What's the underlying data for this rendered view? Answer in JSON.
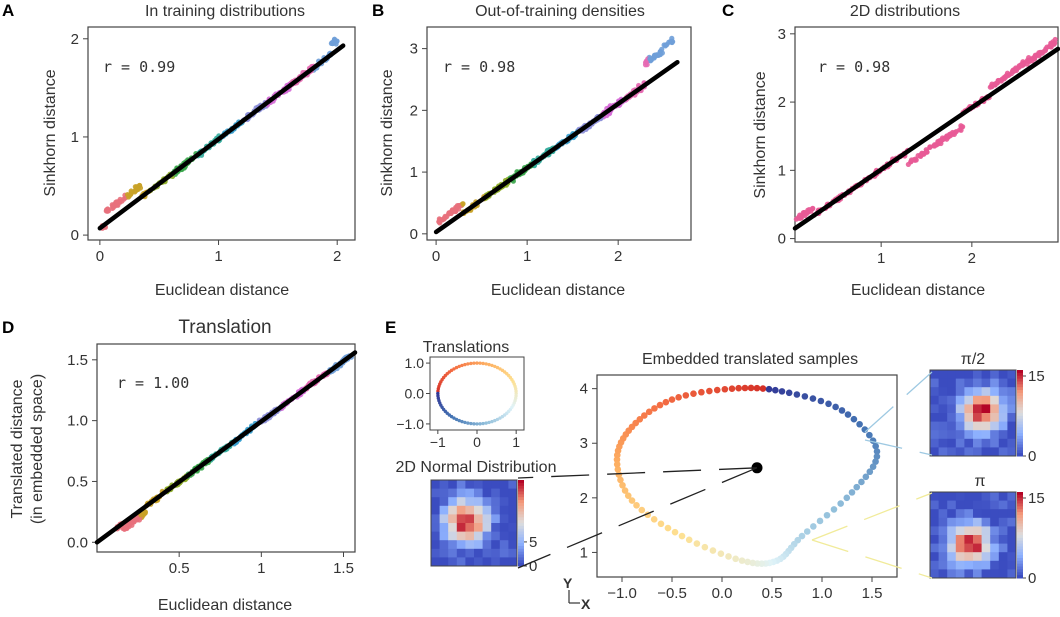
{
  "panels": {
    "A": {
      "letter": "A",
      "title": "In training distributions",
      "r_label": "r = 0.99",
      "xlabel": "Euclidean distance",
      "ylabel": "Sinkhorn distance"
    },
    "B": {
      "letter": "B",
      "title": "Out-of-training densities",
      "r_label": "r = 0.98",
      "xlabel": "Euclidean distance",
      "ylabel": "Sinkhorn distance"
    },
    "C": {
      "letter": "C",
      "title": "2D distributions",
      "r_label": "r = 0.98",
      "xlabel": "Euclidean distance",
      "ylabel": "Sinkhorn distance"
    },
    "D": {
      "letter": "D",
      "title": "Translation",
      "r_label": "r = 1.00",
      "xlabel": "Euclidean distance",
      "ylabel_line1": "Translated distance",
      "ylabel_line2": "(in embedded space)"
    },
    "E": {
      "letter": "E",
      "translations_title": "Translations",
      "normal_title": "2D Normal Distribution",
      "embedded_title": "Embedded translated samples",
      "pi2_title": "π/2",
      "pi_title": "π",
      "axis_y_letter": "Y",
      "axis_x_letter": "X"
    }
  },
  "colors": {
    "fit_line": "#000000",
    "cluster_palette": [
      "#e8707c",
      "#c9a227",
      "#8fae2a",
      "#3aa64b",
      "#36ad9f",
      "#3aa0cf",
      "#8c8fd8",
      "#d56ad6",
      "#e56ab3",
      "#6f9fd8"
    ],
    "pink": "#e85a96",
    "heatmap_low": "#3b4fa8",
    "heatmap_high": "#b40426"
  },
  "chart_data": [
    {
      "id": "A",
      "type": "scatter",
      "title": "In training distributions",
      "xlabel": "Euclidean distance",
      "ylabel": "Sinkhorn distance",
      "xlim": [
        -0.1,
        2.15
      ],
      "ylim": [
        -0.05,
        2.12
      ],
      "xticks": [
        0,
        1,
        2
      ],
      "yticks": [
        0,
        1,
        2
      ],
      "fit": {
        "x": [
          0.0,
          2.05
        ],
        "y": [
          0.07,
          1.93
        ]
      },
      "annotation": "r = 0.99",
      "grid": false
    },
    {
      "id": "B",
      "type": "scatter",
      "title": "Out-of-training densities",
      "xlabel": "Euclidean distance",
      "ylabel": "Sinkhorn distance",
      "xlim": [
        -0.1,
        2.8
      ],
      "ylim": [
        -0.1,
        3.35
      ],
      "xticks": [
        0,
        1,
        2
      ],
      "yticks": [
        0,
        1,
        2,
        3
      ],
      "fit": {
        "x": [
          0.0,
          2.65
        ],
        "y": [
          0.03,
          2.78
        ]
      },
      "annotation": "r = 0.98",
      "grid": false
    },
    {
      "id": "C",
      "type": "scatter",
      "title": "2D distributions",
      "xlabel": "Euclidean distance",
      "ylabel": "Sinkhorn distance",
      "xlim": [
        0.05,
        2.95
      ],
      "ylim": [
        -0.05,
        3.1
      ],
      "xticks": [
        1,
        2
      ],
      "yticks": [
        0,
        1,
        2,
        3
      ],
      "fit": {
        "x": [
          0.05,
          2.95
        ],
        "y": [
          0.15,
          2.78
        ]
      },
      "annotation": "r = 0.98",
      "grid": false
    },
    {
      "id": "D",
      "type": "scatter",
      "title": "Translation",
      "xlabel": "Euclidean distance",
      "ylabel": "Translated distance (in embedded space)",
      "xlim": [
        0.0,
        1.57
      ],
      "ylim": [
        -0.08,
        1.63
      ],
      "xticks": [
        0.5,
        1.0,
        1.5
      ],
      "yticks": [
        0.0,
        0.5,
        1.0,
        1.5
      ],
      "fit": {
        "x": [
          0.0,
          1.57
        ],
        "y": [
          0.0,
          1.56
        ]
      },
      "annotation": "r = 1.00",
      "grid": false
    },
    {
      "id": "E-translations",
      "type": "line",
      "title": "Translations",
      "xlim": [
        -1.2,
        1.2
      ],
      "ylim": [
        -1.2,
        1.2
      ],
      "xticks": [
        -1,
        0,
        1
      ],
      "yticks": [
        -1.0,
        0.0,
        1.0
      ],
      "shape": "unit circle"
    },
    {
      "id": "E-embedded",
      "type": "scatter",
      "title": "Embedded translated samples",
      "xlim": [
        -1.25,
        1.75
      ],
      "ylim": [
        0.55,
        4.25
      ],
      "xticks": [
        -1.0,
        -0.5,
        0.0,
        0.5,
        1.0,
        1.5
      ],
      "yticks": [
        1,
        2,
        3,
        4
      ],
      "center_point": {
        "x": 0.35,
        "y": 2.55
      },
      "loop": [
        {
          "x": -1.05,
          "y": 2.7
        },
        {
          "x": -0.9,
          "y": 3.3
        },
        {
          "x": -0.5,
          "y": 3.8
        },
        {
          "x": 0.1,
          "y": 4.0
        },
        {
          "x": 0.6,
          "y": 3.95
        },
        {
          "x": 1.2,
          "y": 3.6
        },
        {
          "x": 1.55,
          "y": 2.85
        },
        {
          "x": 1.3,
          "y": 2.1
        },
        {
          "x": 0.8,
          "y": 1.3
        },
        {
          "x": 0.55,
          "y": 0.85
        },
        {
          "x": 0.2,
          "y": 0.85
        },
        {
          "x": -0.4,
          "y": 1.3
        },
        {
          "x": -0.9,
          "y": 1.95
        },
        {
          "x": -1.05,
          "y": 2.7
        }
      ]
    },
    {
      "id": "E-heatmaps",
      "type": "heatmap",
      "normal": {
        "colorbar_ticks": [
          0,
          5
        ]
      },
      "pi_over_2": {
        "title": "π/2",
        "colorbar_ticks": [
          0,
          15
        ]
      },
      "pi": {
        "title": "π",
        "colorbar_ticks": [
          0,
          15
        ]
      }
    }
  ]
}
